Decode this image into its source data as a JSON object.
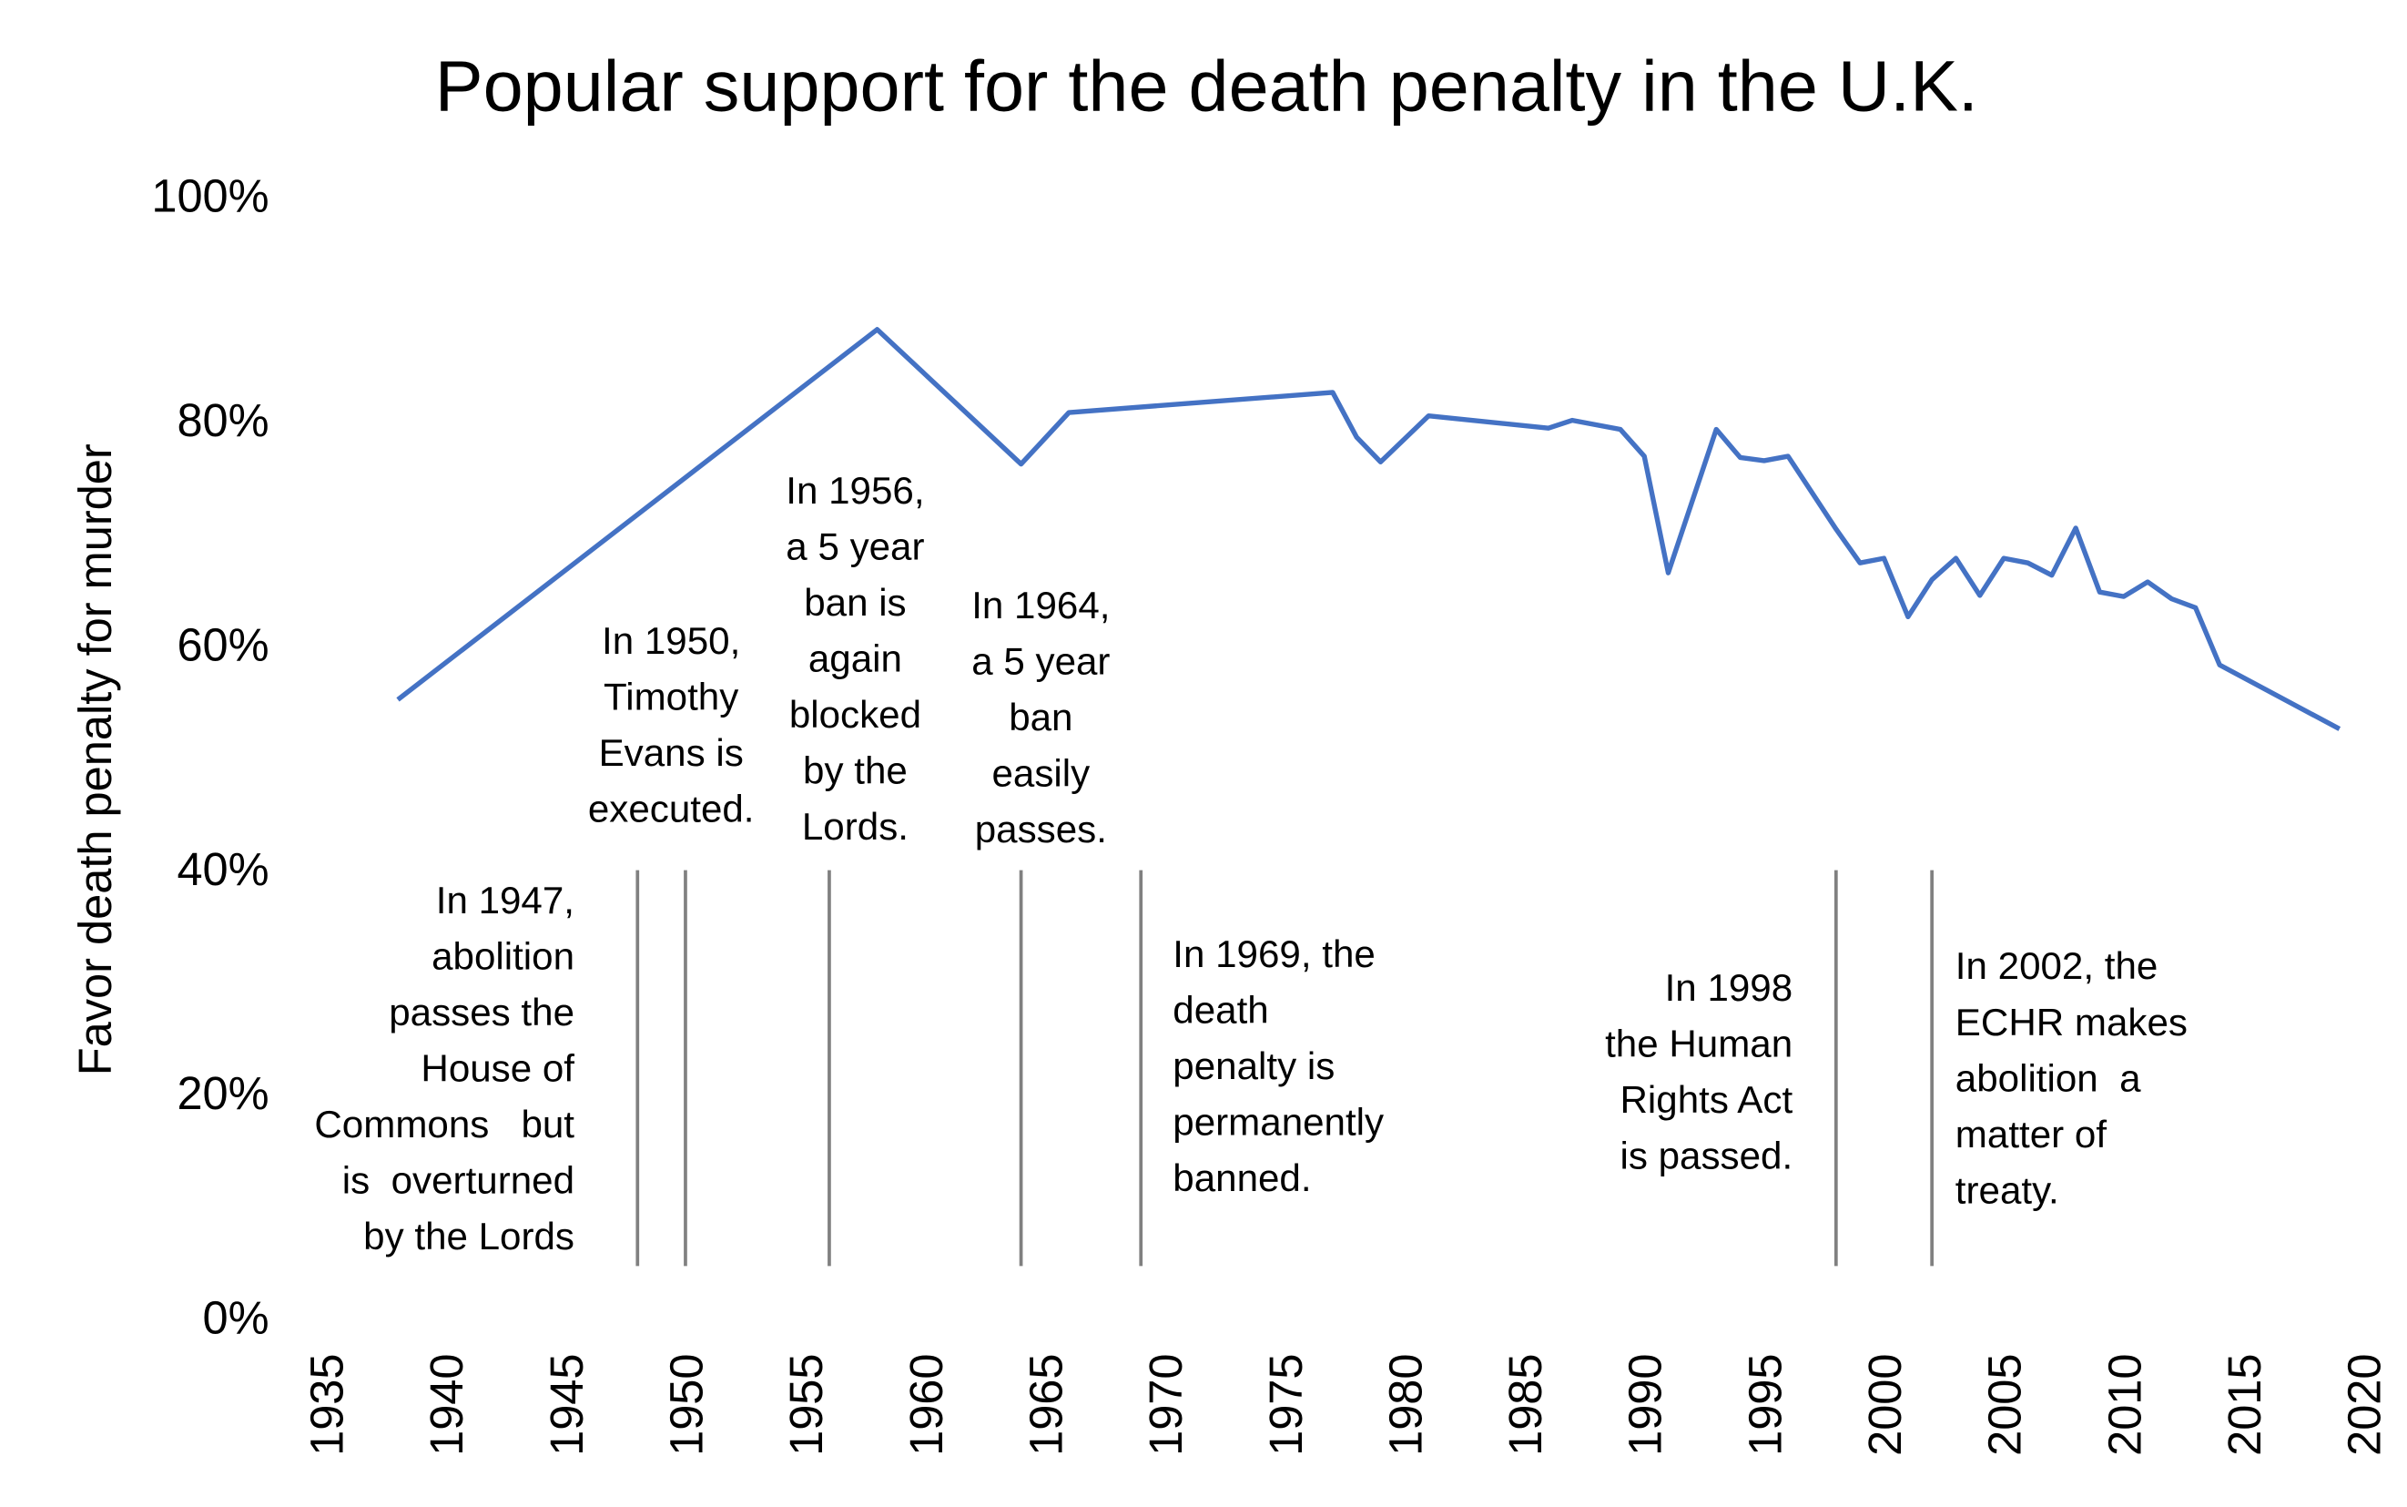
{
  "chart_data": {
    "type": "line",
    "title": "Popular support for the death penalty in the U.K.",
    "xlabel": "",
    "ylabel": "Favor death penalty for murder",
    "xlim": [
      1935,
      2020
    ],
    "ylim": [
      0,
      100
    ],
    "x_ticks": [
      "1935",
      "1940",
      "1945",
      "1950",
      "1955",
      "1960",
      "1965",
      "1970",
      "1975",
      "1980",
      "1985",
      "1990",
      "1995",
      "2000",
      "2005",
      "2010",
      "2015",
      "2020"
    ],
    "y_ticks": [
      "0%",
      "20%",
      "40%",
      "60%",
      "80%",
      "100%"
    ],
    "grid": false,
    "line_color": "#4472C4",
    "series": [
      {
        "name": "Favor death penalty for murder",
        "x": [
          1938,
          1958,
          1964,
          1966,
          1977,
          1978,
          1979,
          1981,
          1986,
          1987,
          1989,
          1990,
          1991,
          1993,
          1994,
          1995,
          1996,
          1998,
          1999,
          2000,
          2001,
          2002,
          2003,
          2004,
          2005,
          2006,
          2007,
          2008,
          2009,
          2010,
          2011,
          2012,
          2013,
          2014,
          2019
        ],
        "y": [
          55,
          88,
          76,
          80.6,
          82.4,
          78.4,
          76.2,
          80.3,
          79.2,
          79.9,
          79.1,
          76.7,
          66.3,
          79.1,
          76.6,
          76.3,
          76.7,
          70.2,
          67.2,
          67.6,
          62.4,
          65.7,
          67.6,
          64.3,
          67.6,
          67.2,
          66.1,
          70.3,
          64.6,
          64.2,
          65.5,
          64.0,
          63.2,
          58.1,
          52.4
        ]
      }
    ],
    "event_lines": [
      1948,
      1950,
      1956,
      1964,
      1969,
      1998,
      2002
    ],
    "annotations": [
      {
        "id": "a1947",
        "align": "right",
        "lines": [
          "In 1947,",
          "abolition",
          "passes the",
          "House of",
          "Commons   but",
          "is  overturned",
          "by the Lords"
        ]
      },
      {
        "id": "a1950",
        "align": "center",
        "lines": [
          "In 1950,",
          "Timothy",
          "Evans is",
          "executed."
        ]
      },
      {
        "id": "a1956",
        "align": "center",
        "lines": [
          "In 1956,",
          "a 5 year",
          "ban is",
          "again",
          "blocked",
          "by the",
          "Lords."
        ]
      },
      {
        "id": "a1964",
        "align": "center",
        "lines": [
          "In 1964,",
          "a 5 year",
          "ban",
          "easily",
          "passes."
        ]
      },
      {
        "id": "a1969",
        "align": "left",
        "lines": [
          "In 1969, the",
          "death",
          "penalty is",
          "permanently",
          "banned."
        ]
      },
      {
        "id": "a1998",
        "align": "right",
        "lines": [
          "In 1998",
          "the Human",
          "Rights Act",
          "is passed."
        ]
      },
      {
        "id": "a2002",
        "align": "left",
        "lines": [
          "In 2002, the",
          "ECHR makes",
          "abolition  a",
          "matter of",
          "treaty."
        ]
      }
    ]
  }
}
